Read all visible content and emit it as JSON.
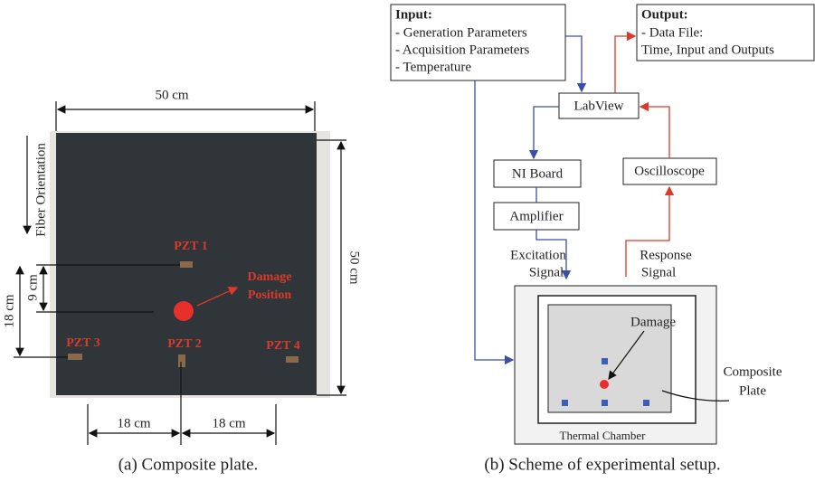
{
  "panel_a": {
    "dim_top": "50 cm",
    "dim_right": "50 cm",
    "fiber": "Fiber Orientation",
    "dim_9": "9 cm",
    "dim_18_vertical": "18 cm",
    "dim_18_left": "18 cm",
    "dim_18_right": "18 cm",
    "sensors": [
      "PZT 1",
      "PZT 2",
      "PZT 3",
      "PZT 4"
    ],
    "damage": [
      "Damage",
      "Position"
    ],
    "caption": "(a) Composite plate."
  },
  "panel_b": {
    "input": {
      "title": "Input:",
      "items": [
        "- Generation Parameters",
        "- Acquisition Parameters",
        "- Temperature"
      ]
    },
    "output": {
      "title": "Output:",
      "items": [
        "- Data File:",
        "Time, Input and Outputs"
      ]
    },
    "nodes": [
      "LabView",
      "NI Board",
      "Amplifier",
      "Oscilloscope"
    ],
    "excitation": [
      "Excitation",
      "Signal"
    ],
    "response": [
      "Response",
      "Signal"
    ],
    "chamber": "Thermal Chamber",
    "damage": "Damage",
    "plate": [
      "Composite",
      "Plate"
    ],
    "caption": "(b) Scheme of experimental setup."
  }
}
